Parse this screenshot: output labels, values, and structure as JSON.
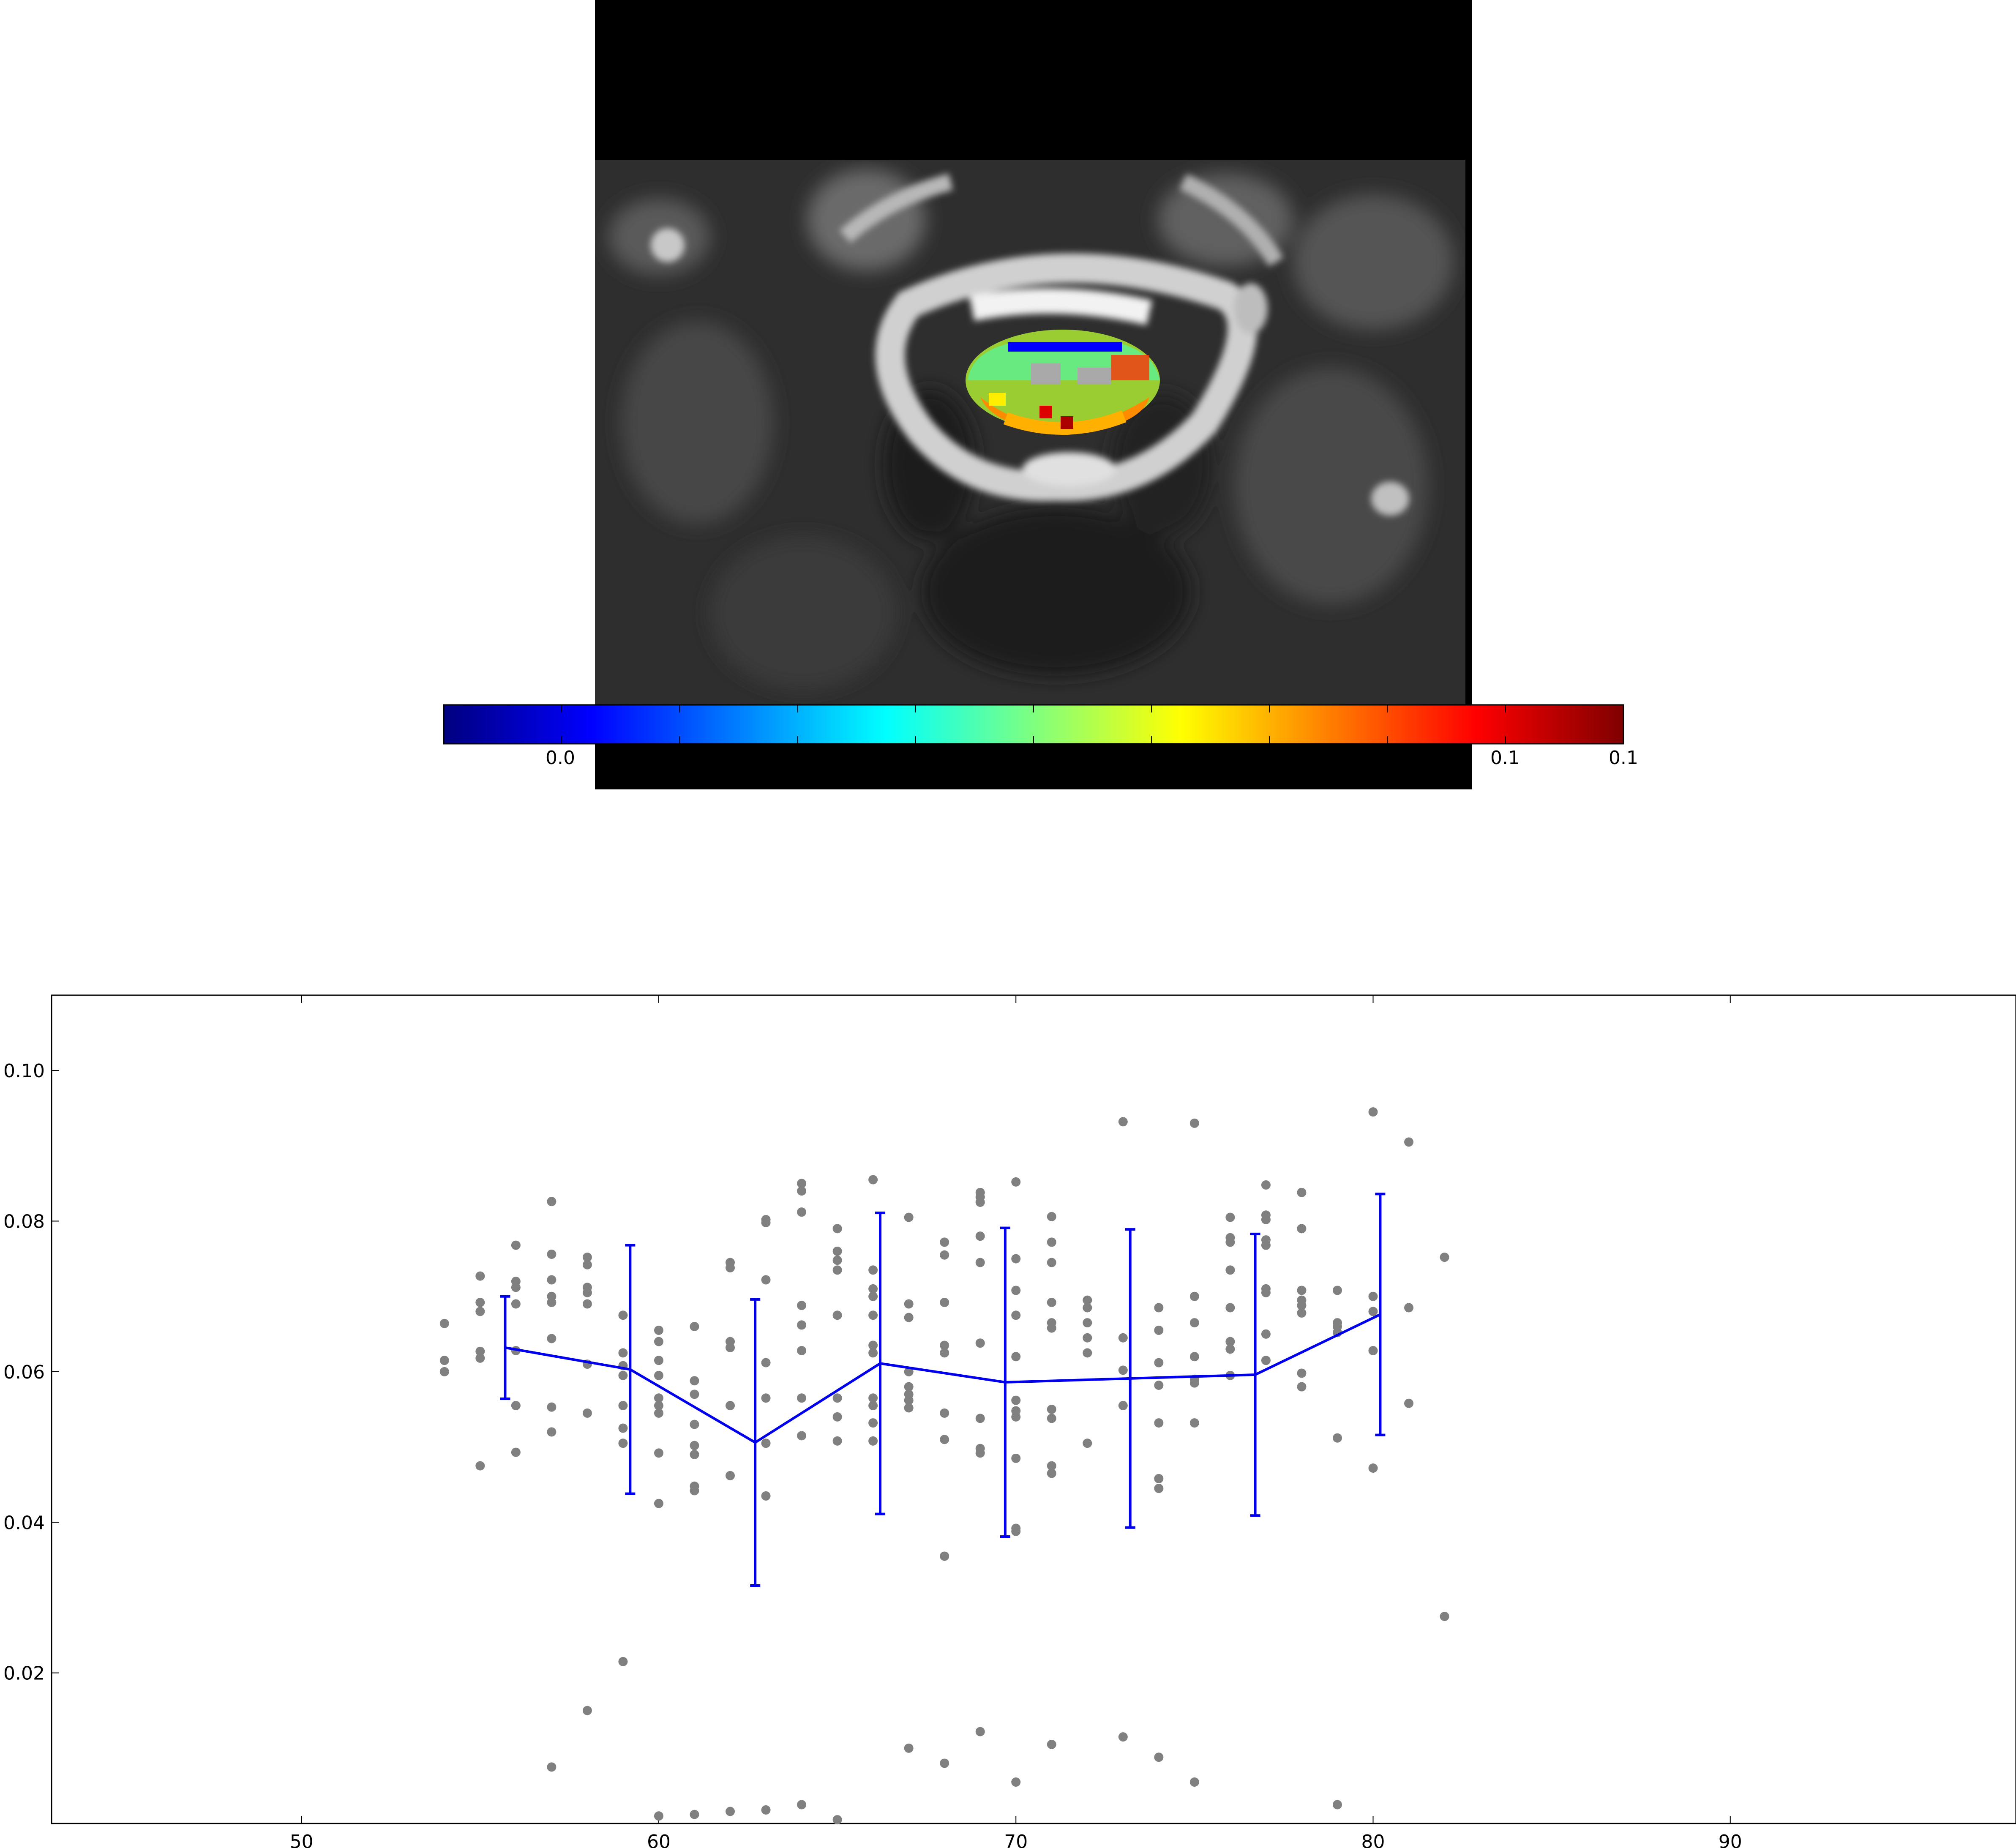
{
  "image_panel": {
    "colorbar": {
      "colormap": "jet",
      "tick_labels": [
        "0.0",
        "0.1",
        "0.1"
      ],
      "colors": [
        "#00007f",
        "#0000ff",
        "#007fff",
        "#00ffff",
        "#7fff7f",
        "#ffff00",
        "#ff7f00",
        "#ff0000",
        "#7f0000"
      ]
    }
  },
  "chart_data": {
    "type": "scatter",
    "title": "",
    "xlabel": "",
    "ylabel": "",
    "xlim": [
      43,
      98
    ],
    "ylim": [
      0.0,
      0.11
    ],
    "x_ticks": [
      50,
      60,
      70,
      80,
      90
    ],
    "y_ticks": [
      0.02,
      0.04,
      0.06,
      0.08,
      0.1
    ],
    "x_tick_labels": [
      "50",
      "60",
      "70",
      "80",
      "90"
    ],
    "y_tick_labels": [
      "0.02",
      "0.04",
      "0.06",
      "0.08",
      "0.10"
    ],
    "grid": false,
    "colors": {
      "points": "#808080",
      "mean_line": "#0000ee"
    },
    "series": [
      {
        "type": "scatter",
        "points": [
          [
            54,
            0.0664
          ],
          [
            54,
            0.0615
          ],
          [
            54,
            0.06
          ],
          [
            55,
            0.0727
          ],
          [
            55,
            0.0692
          ],
          [
            55,
            0.068
          ],
          [
            55,
            0.0627
          ],
          [
            55,
            0.0618
          ],
          [
            55,
            0.0475
          ],
          [
            56,
            0.0768
          ],
          [
            56,
            0.072
          ],
          [
            56,
            0.0712
          ],
          [
            56,
            0.069
          ],
          [
            56,
            0.0628
          ],
          [
            56,
            0.0555
          ],
          [
            56,
            0.0493
          ],
          [
            57,
            0.0826
          ],
          [
            57,
            0.0756
          ],
          [
            57,
            0.0722
          ],
          [
            57,
            0.07
          ],
          [
            57,
            0.0692
          ],
          [
            57,
            0.0644
          ],
          [
            57,
            0.0553
          ],
          [
            57,
            0.052
          ],
          [
            57,
            0.0075
          ],
          [
            58,
            0.0752
          ],
          [
            58,
            0.0742
          ],
          [
            58,
            0.0712
          ],
          [
            58,
            0.0705
          ],
          [
            58,
            0.069
          ],
          [
            58,
            0.061
          ],
          [
            58,
            0.0545
          ],
          [
            58,
            0.015
          ],
          [
            59,
            0.0675
          ],
          [
            59,
            0.0625
          ],
          [
            59,
            0.0608
          ],
          [
            59,
            0.0595
          ],
          [
            59,
            0.0555
          ],
          [
            59,
            0.0525
          ],
          [
            59,
            0.0505
          ],
          [
            59,
            0.0215
          ],
          [
            60,
            0.0655
          ],
          [
            60,
            0.064
          ],
          [
            60,
            0.0615
          ],
          [
            60,
            0.0595
          ],
          [
            60,
            0.0565
          ],
          [
            60,
            0.0555
          ],
          [
            60,
            0.0545
          ],
          [
            60,
            0.0492
          ],
          [
            60,
            0.0425
          ],
          [
            60,
            0.001
          ],
          [
            61,
            0.066
          ],
          [
            61,
            0.0588
          ],
          [
            61,
            0.057
          ],
          [
            61,
            0.053
          ],
          [
            61,
            0.0502
          ],
          [
            61,
            0.049
          ],
          [
            61,
            0.0448
          ],
          [
            61,
            0.0442
          ],
          [
            61,
            0.0012
          ],
          [
            62,
            0.0745
          ],
          [
            62,
            0.0738
          ],
          [
            62,
            0.064
          ],
          [
            62,
            0.0632
          ],
          [
            62,
            0.0555
          ],
          [
            62,
            0.0462
          ],
          [
            62,
            0.0016
          ],
          [
            63,
            0.0802
          ],
          [
            63,
            0.0798
          ],
          [
            63,
            0.0722
          ],
          [
            63,
            0.0612
          ],
          [
            63,
            0.0565
          ],
          [
            63,
            0.0505
          ],
          [
            63,
            0.0435
          ],
          [
            63,
            0.0018
          ],
          [
            64,
            0.085
          ],
          [
            64,
            0.084
          ],
          [
            64,
            0.0812
          ],
          [
            64,
            0.0688
          ],
          [
            64,
            0.0662
          ],
          [
            64,
            0.0628
          ],
          [
            64,
            0.0565
          ],
          [
            64,
            0.0515
          ],
          [
            64,
            0.0025
          ],
          [
            65,
            0.079
          ],
          [
            65,
            0.076
          ],
          [
            65,
            0.0748
          ],
          [
            65,
            0.0735
          ],
          [
            65,
            0.0675
          ],
          [
            65,
            0.0565
          ],
          [
            65,
            0.054
          ],
          [
            65,
            0.0508
          ],
          [
            65,
            0.0005
          ],
          [
            66,
            0.0855
          ],
          [
            66,
            0.0735
          ],
          [
            66,
            0.071
          ],
          [
            66,
            0.07
          ],
          [
            66,
            0.0675
          ],
          [
            66,
            0.0635
          ],
          [
            66,
            0.0625
          ],
          [
            66,
            0.0565
          ],
          [
            66,
            0.0555
          ],
          [
            66,
            0.0532
          ],
          [
            66,
            0.0508
          ],
          [
            67,
            0.0805
          ],
          [
            67,
            0.069
          ],
          [
            67,
            0.0672
          ],
          [
            67,
            0.06
          ],
          [
            67,
            0.058
          ],
          [
            67,
            0.057
          ],
          [
            67,
            0.0562
          ],
          [
            67,
            0.0552
          ],
          [
            67,
            0.01
          ],
          [
            68,
            0.0772
          ],
          [
            68,
            0.0755
          ],
          [
            68,
            0.0692
          ],
          [
            68,
            0.0635
          ],
          [
            68,
            0.0625
          ],
          [
            68,
            0.0545
          ],
          [
            68,
            0.051
          ],
          [
            68,
            0.0355
          ],
          [
            68,
            0.008
          ],
          [
            69,
            0.0838
          ],
          [
            69,
            0.0832
          ],
          [
            69,
            0.0825
          ],
          [
            69,
            0.078
          ],
          [
            69,
            0.0745
          ],
          [
            69,
            0.0638
          ],
          [
            69,
            0.0538
          ],
          [
            69,
            0.0498
          ],
          [
            69,
            0.0492
          ],
          [
            69,
            0.0122
          ],
          [
            70,
            0.0852
          ],
          [
            70,
            0.075
          ],
          [
            70,
            0.0708
          ],
          [
            70,
            0.0675
          ],
          [
            70,
            0.062
          ],
          [
            70,
            0.0562
          ],
          [
            70,
            0.0548
          ],
          [
            70,
            0.054
          ],
          [
            70,
            0.0485
          ],
          [
            70,
            0.0392
          ],
          [
            70,
            0.0388
          ],
          [
            70,
            0.0055
          ],
          [
            71,
            0.0806
          ],
          [
            71,
            0.0772
          ],
          [
            71,
            0.0745
          ],
          [
            71,
            0.0692
          ],
          [
            71,
            0.0665
          ],
          [
            71,
            0.0658
          ],
          [
            71,
            0.055
          ],
          [
            71,
            0.0538
          ],
          [
            71,
            0.0475
          ],
          [
            71,
            0.0465
          ],
          [
            71,
            0.0105
          ],
          [
            72,
            0.0695
          ],
          [
            72,
            0.0685
          ],
          [
            72,
            0.0665
          ],
          [
            72,
            0.0645
          ],
          [
            72,
            0.0625
          ],
          [
            72,
            0.0505
          ],
          [
            73,
            0.0932
          ],
          [
            73,
            0.0645
          ],
          [
            73,
            0.0602
          ],
          [
            73,
            0.0555
          ],
          [
            73,
            0.0115
          ],
          [
            74,
            0.0685
          ],
          [
            74,
            0.0655
          ],
          [
            74,
            0.0612
          ],
          [
            74,
            0.0582
          ],
          [
            74,
            0.0532
          ],
          [
            74,
            0.0458
          ],
          [
            74,
            0.0445
          ],
          [
            74,
            0.0088
          ],
          [
            75,
            0.093
          ],
          [
            75,
            0.07
          ],
          [
            75,
            0.0665
          ],
          [
            75,
            0.062
          ],
          [
            75,
            0.059
          ],
          [
            75,
            0.0585
          ],
          [
            75,
            0.0532
          ],
          [
            75,
            0.0055
          ],
          [
            76,
            0.0805
          ],
          [
            76,
            0.0778
          ],
          [
            76,
            0.0772
          ],
          [
            76,
            0.0735
          ],
          [
            76,
            0.0685
          ],
          [
            76,
            0.064
          ],
          [
            76,
            0.063
          ],
          [
            76,
            0.0595
          ],
          [
            77,
            0.0848
          ],
          [
            77,
            0.0808
          ],
          [
            77,
            0.0802
          ],
          [
            77,
            0.0775
          ],
          [
            77,
            0.0768
          ],
          [
            77,
            0.071
          ],
          [
            77,
            0.065
          ],
          [
            77,
            0.0615
          ],
          [
            77,
            0.0705
          ],
          [
            78,
            0.0838
          ],
          [
            78,
            0.079
          ],
          [
            78,
            0.0708
          ],
          [
            78,
            0.0695
          ],
          [
            78,
            0.0688
          ],
          [
            78,
            0.0678
          ],
          [
            78,
            0.0598
          ],
          [
            78,
            0.058
          ],
          [
            79,
            0.0708
          ],
          [
            79,
            0.0665
          ],
          [
            79,
            0.066
          ],
          [
            79,
            0.0652
          ],
          [
            79,
            0.0512
          ],
          [
            79,
            0.0025
          ],
          [
            80,
            0.0945
          ],
          [
            80,
            0.07
          ],
          [
            80,
            0.068
          ],
          [
            80,
            0.0628
          ],
          [
            80,
            0.0472
          ],
          [
            81,
            0.0905
          ],
          [
            81,
            0.0685
          ],
          [
            81,
            0.0558
          ],
          [
            82,
            0.0752
          ],
          [
            82,
            0.0275
          ]
        ]
      },
      {
        "type": "line",
        "error_bars": true,
        "x": [
          55.7,
          59.2,
          62.7,
          66.2,
          69.7,
          73.2,
          76.7,
          80.2
        ],
        "y": [
          0.0632,
          0.0603,
          0.0506,
          0.0611,
          0.0586,
          0.0591,
          0.0596,
          0.0676
        ],
        "yerr": [
          0.0068,
          0.0165,
          0.019,
          0.02,
          0.0205,
          0.0198,
          0.0187,
          0.016
        ]
      }
    ]
  }
}
